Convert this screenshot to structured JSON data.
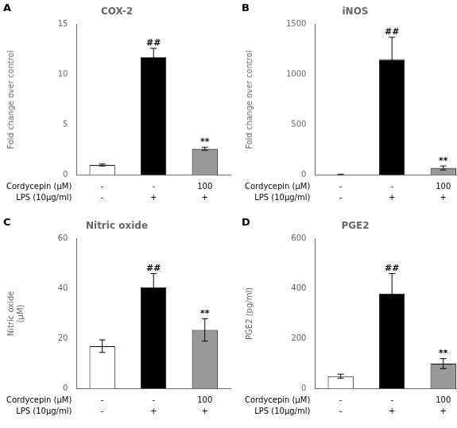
{
  "chart_data": [
    {
      "type": "bar",
      "panel_label": "A",
      "title": "COX-2",
      "ylabel": "Fold change over control",
      "values": [
        1.0,
        11.7,
        2.6
      ],
      "errors": [
        0.1,
        0.9,
        0.15
      ],
      "colors": [
        "white",
        "black",
        "#999999"
      ],
      "sig_labels": [
        null,
        "##",
        "**"
      ],
      "sig_label_positions": [
        null,
        12.6,
        2.75
      ],
      "rows": [
        {
          "label": "Cordycepin (μM)",
          "values": [
            "-",
            "-",
            "100"
          ]
        },
        {
          "label": "LPS (10μg/ml)",
          "values": [
            "-",
            "+",
            "+"
          ]
        }
      ],
      "ylim": [
        0,
        15
      ],
      "yticks": [
        0,
        5,
        10,
        15
      ],
      "grid": false,
      "tick_labels": "y"
    },
    {
      "type": "bar",
      "panel_label": "B",
      "title": "iNOS",
      "ylabel": "Fold change over control",
      "values": [
        1.0,
        1150,
        70
      ],
      "errors": [
        5,
        220,
        20
      ],
      "colors": [
        "white",
        "black",
        "#999999"
      ],
      "sig_labels": [
        null,
        "##",
        "**"
      ],
      "sig_label_positions": [
        null,
        1370,
        90
      ],
      "rows": [
        {
          "label": "Cordycepin (μM)",
          "values": [
            "-",
            "-",
            "100"
          ]
        },
        {
          "label": "LPS (10μg/ml)",
          "values": [
            "-",
            "+",
            "+"
          ]
        }
      ],
      "ylim": [
        0,
        1500
      ],
      "yticks": [
        0,
        500,
        1000,
        1500
      ],
      "grid": false,
      "tick_labels": "y"
    },
    {
      "type": "bar",
      "panel_label": "C",
      "title": "Nitric oxide",
      "ylabel": "Nitric oxide\n(μM)",
      "values": [
        17,
        40.5,
        23.5
      ],
      "errors": [
        2.5,
        5.5,
        4.5
      ],
      "colors": [
        "white",
        "black",
        "#999999"
      ],
      "sig_labels": [
        null,
        "##",
        "**"
      ],
      "sig_label_positions": [
        null,
        46,
        28
      ],
      "rows": [
        {
          "label": "Cordycepin (μM)",
          "values": [
            "-",
            "-",
            "100"
          ]
        },
        {
          "label": "LPS (10μg/ml)",
          "values": [
            "-",
            "+",
            "+"
          ]
        }
      ],
      "ylim": [
        0,
        60
      ],
      "yticks": [
        0,
        20,
        40,
        60
      ],
      "grid": false,
      "tick_labels": "y"
    },
    {
      "type": "bar",
      "panel_label": "D",
      "title": "PGE2",
      "ylabel": "PGE2 (pg/ml)",
      "values": [
        50,
        380,
        100
      ],
      "errors": [
        8,
        80,
        20
      ],
      "colors": [
        "white",
        "black",
        "#999999"
      ],
      "sig_labels": [
        null,
        "##",
        "**"
      ],
      "sig_label_positions": [
        null,
        460,
        120
      ],
      "rows": [
        {
          "label": "Cordycepin (μM)",
          "values": [
            "-",
            "-",
            "100"
          ]
        },
        {
          "label": "LPS (10μg/ml)",
          "values": [
            "-",
            "+",
            "+"
          ]
        }
      ],
      "ylim": [
        0,
        600
      ],
      "yticks": [
        0,
        200,
        400,
        600
      ],
      "grid": false,
      "tick_labels": "y"
    }
  ]
}
